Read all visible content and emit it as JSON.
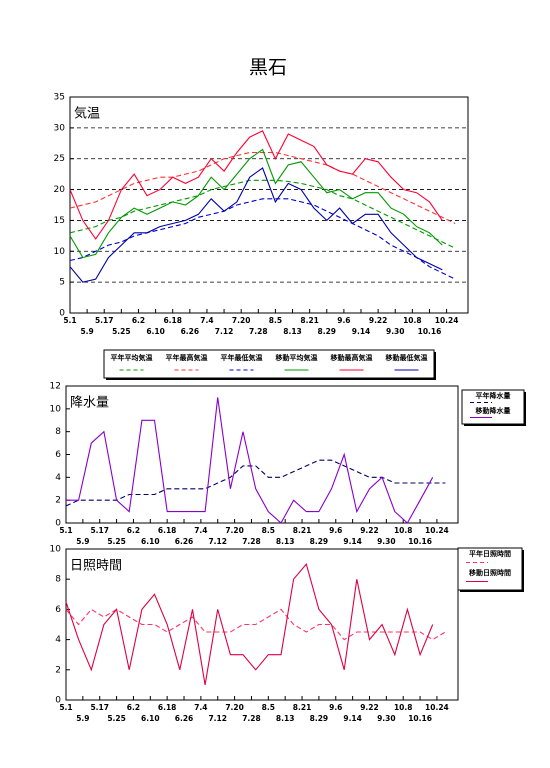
{
  "title": "黒石",
  "chart_data": [
    {
      "type": "line",
      "annotation": "気温",
      "legend": "bottom",
      "grid": true,
      "xlim": [
        0,
        186
      ],
      "ylim": [
        0,
        35
      ],
      "yticks": [
        0,
        5,
        10,
        15,
        20,
        25,
        30,
        35
      ],
      "xticks": [
        {
          "value": 0,
          "label": "5.1"
        },
        {
          "value": 8,
          "label": "5.9"
        },
        {
          "value": 16,
          "label": "5.17"
        },
        {
          "value": 24,
          "label": "5.25"
        },
        {
          "value": 32,
          "label": "6.2"
        },
        {
          "value": 40,
          "label": "6.10"
        },
        {
          "value": 48,
          "label": "6.18"
        },
        {
          "value": 56,
          "label": "6.26"
        },
        {
          "value": 64,
          "label": "7.4"
        },
        {
          "value": 72,
          "label": "7.12"
        },
        {
          "value": 80,
          "label": "7.20"
        },
        {
          "value": 88,
          "label": "7.28"
        },
        {
          "value": 96,
          "label": "8.5"
        },
        {
          "value": 104,
          "label": "8.13"
        },
        {
          "value": 112,
          "label": "8.21"
        },
        {
          "value": 120,
          "label": "8.29"
        },
        {
          "value": 128,
          "label": "9.6"
        },
        {
          "value": 136,
          "label": "9.14"
        },
        {
          "value": 144,
          "label": "9.22"
        },
        {
          "value": 152,
          "label": "9.30"
        },
        {
          "value": 160,
          "label": "10.8"
        },
        {
          "value": 168,
          "label": "10.16"
        },
        {
          "value": 176,
          "label": "10.24"
        }
      ],
      "x": [
        0,
        6,
        12,
        18,
        24,
        30,
        36,
        42,
        48,
        54,
        60,
        66,
        72,
        78,
        84,
        90,
        96,
        102,
        108,
        114,
        120,
        126,
        132,
        138,
        144,
        150,
        156,
        162,
        168,
        174,
        180
      ],
      "series": [
        {
          "name": "平年平均気温",
          "color": "#009900",
          "dash": true,
          "values": [
            13,
            13.5,
            14,
            15,
            15.5,
            16.5,
            17,
            17.5,
            18,
            18.5,
            19,
            20,
            20.5,
            21,
            21.5,
            21.5,
            21.5,
            21.3,
            21,
            20.5,
            20,
            19,
            18.5,
            17.5,
            16.5,
            15.5,
            14.5,
            13.5,
            12.5,
            11.5,
            10.5
          ]
        },
        {
          "name": "平年最高気温",
          "color": "#ff3333",
          "dash": true,
          "values": [
            17,
            17.5,
            18,
            19,
            20,
            21,
            21.5,
            22,
            22,
            22.5,
            23,
            24,
            25,
            25.5,
            26,
            26,
            26,
            25.5,
            25,
            24.5,
            24,
            23,
            22.5,
            21.5,
            20.5,
            19.5,
            18.5,
            17.5,
            16.5,
            15.5,
            14.5
          ]
        },
        {
          "name": "平年最低気温",
          "color": "#0000cc",
          "dash": true,
          "values": [
            8.5,
            9,
            10,
            11,
            11.5,
            12.5,
            13,
            13.5,
            14,
            14.5,
            15.5,
            16,
            16.5,
            17.5,
            18,
            18.5,
            18.5,
            18.5,
            18,
            17.5,
            16.5,
            15.5,
            14.5,
            13.5,
            12.5,
            11,
            10,
            9,
            7.5,
            6.5,
            5.5
          ]
        },
        {
          "name": "移動平均気温",
          "color": "#009900",
          "dash": false,
          "values": [
            12.5,
            9,
            9.5,
            13,
            15.5,
            17,
            16,
            17,
            18,
            17.5,
            19,
            22,
            20,
            22.5,
            25,
            26.5,
            21,
            24,
            24.5,
            22,
            19.5,
            20,
            18.5,
            19.5,
            19.5,
            17,
            16,
            14,
            13,
            11,
            null
          ]
        },
        {
          "name": "移動最高気温",
          "color": "#ff0033",
          "dash": false,
          "values": [
            20,
            15,
            12,
            15,
            20,
            22.5,
            19,
            20,
            22,
            21,
            22,
            25,
            23,
            26,
            28.5,
            29.5,
            25,
            29,
            28,
            27,
            24,
            23,
            22.5,
            25,
            24.5,
            22,
            20,
            19.5,
            18,
            15,
            null
          ]
        },
        {
          "name": "移動最低気温",
          "color": "#0000aa",
          "dash": false,
          "values": [
            7.5,
            5,
            5.5,
            9,
            11,
            13,
            13,
            14,
            14.5,
            15,
            16,
            18.5,
            16.5,
            18,
            22,
            23.5,
            18,
            21,
            20,
            17,
            15,
            17,
            14.5,
            16,
            16,
            13,
            11,
            9,
            8,
            7,
            null
          ]
        }
      ]
    },
    {
      "type": "line",
      "annotation": "降水量",
      "legend": "right",
      "grid": false,
      "xlim": [
        0,
        186
      ],
      "ylim": [
        0,
        12
      ],
      "yticks": [
        0,
        2,
        4,
        6,
        8,
        10,
        12
      ],
      "xticks": [
        {
          "value": 0,
          "label": "5.1"
        },
        {
          "value": 8,
          "label": "5.9"
        },
        {
          "value": 16,
          "label": "5.17"
        },
        {
          "value": 24,
          "label": "5.25"
        },
        {
          "value": 32,
          "label": "6.2"
        },
        {
          "value": 40,
          "label": "6.10"
        },
        {
          "value": 48,
          "label": "6.18"
        },
        {
          "value": 56,
          "label": "6.26"
        },
        {
          "value": 64,
          "label": "7.4"
        },
        {
          "value": 72,
          "label": "7.12"
        },
        {
          "value": 80,
          "label": "7.20"
        },
        {
          "value": 88,
          "label": "7.28"
        },
        {
          "value": 96,
          "label": "8.5"
        },
        {
          "value": 104,
          "label": "8.13"
        },
        {
          "value": 112,
          "label": "8.21"
        },
        {
          "value": 120,
          "label": "8.29"
        },
        {
          "value": 128,
          "label": "9.6"
        },
        {
          "value": 136,
          "label": "9.14"
        },
        {
          "value": 144,
          "label": "9.22"
        },
        {
          "value": 152,
          "label": "9.30"
        },
        {
          "value": 160,
          "label": "10.8"
        },
        {
          "value": 168,
          "label": "10.16"
        },
        {
          "value": 176,
          "label": "10.24"
        }
      ],
      "x": [
        0,
        6,
        12,
        18,
        24,
        30,
        36,
        42,
        48,
        54,
        60,
        66,
        72,
        78,
        84,
        90,
        96,
        102,
        108,
        114,
        120,
        126,
        132,
        138,
        144,
        150,
        156,
        162,
        168,
        174,
        180
      ],
      "series": [
        {
          "name": "平年降水量",
          "color": "#000066",
          "dash": true,
          "values": [
            1.5,
            2,
            2,
            2,
            2,
            2.5,
            2.5,
            2.5,
            3,
            3,
            3,
            3,
            3.5,
            4,
            5,
            5,
            4,
            4,
            4.5,
            5,
            5.5,
            5.5,
            5,
            4.5,
            4,
            4,
            3.5,
            3.5,
            3.5,
            3.5,
            3.5
          ]
        },
        {
          "name": "移動降水量",
          "color": "#8800cc",
          "dash": false,
          "values": [
            2,
            2,
            7,
            8,
            2,
            1,
            9,
            9,
            1,
            1,
            1,
            1,
            11,
            3,
            8,
            3,
            1,
            0,
            2,
            1,
            1,
            3,
            6,
            1,
            3,
            4,
            1,
            0,
            2,
            4,
            null
          ]
        }
      ]
    },
    {
      "type": "line",
      "annotation": "日照時間",
      "legend": "right",
      "grid": false,
      "xlim": [
        0,
        186
      ],
      "ylim": [
        0,
        10
      ],
      "yticks": [
        0,
        2,
        4,
        6,
        8,
        10
      ],
      "xticks": [
        {
          "value": 0,
          "label": "5.1"
        },
        {
          "value": 8,
          "label": "5.9"
        },
        {
          "value": 16,
          "label": "5.17"
        },
        {
          "value": 24,
          "label": "5.25"
        },
        {
          "value": 32,
          "label": "6.2"
        },
        {
          "value": 40,
          "label": "6.10"
        },
        {
          "value": 48,
          "label": "6.18"
        },
        {
          "value": 56,
          "label": "6.26"
        },
        {
          "value": 64,
          "label": "7.4"
        },
        {
          "value": 72,
          "label": "7.12"
        },
        {
          "value": 80,
          "label": "7.20"
        },
        {
          "value": 88,
          "label": "7.28"
        },
        {
          "value": 96,
          "label": "8.5"
        },
        {
          "value": 104,
          "label": "8.13"
        },
        {
          "value": 112,
          "label": "8.21"
        },
        {
          "value": 120,
          "label": "8.29"
        },
        {
          "value": 128,
          "label": "9.6"
        },
        {
          "value": 136,
          "label": "9.14"
        },
        {
          "value": 144,
          "label": "9.22"
        },
        {
          "value": 152,
          "label": "9.30"
        },
        {
          "value": 160,
          "label": "10.8"
        },
        {
          "value": 168,
          "label": "10.16"
        },
        {
          "value": 176,
          "label": "10.24"
        }
      ],
      "x": [
        0,
        6,
        12,
        18,
        24,
        30,
        36,
        42,
        48,
        54,
        60,
        66,
        72,
        78,
        84,
        90,
        96,
        102,
        108,
        114,
        120,
        126,
        132,
        138,
        144,
        150,
        156,
        162,
        168,
        174,
        180
      ],
      "series": [
        {
          "name": "平年日照時間",
          "color": "#ff3366",
          "dash": true,
          "values": [
            6,
            5,
            6,
            5.5,
            6,
            5.5,
            5,
            5,
            4.5,
            5,
            5.5,
            4.5,
            4.5,
            4.5,
            5,
            5,
            5.5,
            6,
            5,
            4.5,
            5,
            5,
            4,
            4.5,
            4.5,
            4.5,
            4.5,
            4.5,
            4.5,
            4,
            4.5
          ]
        },
        {
          "name": "移動日照時間",
          "color": "#dd0044",
          "dash": false,
          "values": [
            6.5,
            4,
            2,
            5,
            6,
            2,
            6,
            7,
            5,
            2,
            6,
            1,
            6,
            3,
            3,
            2,
            3,
            3,
            8,
            9,
            6,
            5,
            2,
            8,
            4,
            5,
            3,
            6,
            3,
            5,
            null
          ]
        }
      ]
    }
  ]
}
